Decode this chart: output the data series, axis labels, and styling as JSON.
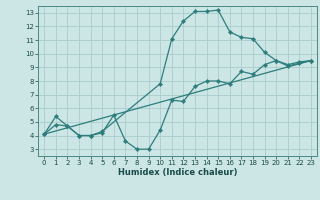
{
  "xlabel": "Humidex (Indice chaleur)",
  "bg_color": "#cce5e5",
  "grid_color": "#aacccc",
  "line_color": "#2e7d7d",
  "xlim": [
    -0.5,
    23.5
  ],
  "ylim": [
    2.5,
    13.5
  ],
  "xticks": [
    0,
    1,
    2,
    3,
    4,
    5,
    6,
    7,
    8,
    9,
    10,
    11,
    12,
    13,
    14,
    15,
    16,
    17,
    18,
    19,
    20,
    21,
    22,
    23
  ],
  "yticks": [
    3,
    4,
    5,
    6,
    7,
    8,
    9,
    10,
    11,
    12,
    13
  ],
  "line1_x": [
    0,
    1,
    2,
    3,
    4,
    5,
    10,
    11,
    12,
    13,
    14,
    15,
    16,
    17,
    18,
    19,
    20,
    21,
    22,
    23
  ],
  "line1_y": [
    4.1,
    5.4,
    4.7,
    4.0,
    4.0,
    4.3,
    7.8,
    11.1,
    12.4,
    13.1,
    13.1,
    13.2,
    11.6,
    11.2,
    11.1,
    10.1,
    9.5,
    9.2,
    9.4,
    9.5
  ],
  "line2_x": [
    0,
    23
  ],
  "line2_y": [
    4.1,
    9.5
  ],
  "line3_x": [
    0,
    1,
    2,
    3,
    4,
    5,
    6,
    7,
    8,
    9,
    10,
    11,
    12,
    13,
    14,
    15,
    16,
    17,
    18,
    19,
    20,
    21,
    22,
    23
  ],
  "line3_y": [
    4.1,
    4.8,
    4.7,
    4.0,
    4.0,
    4.2,
    5.5,
    3.6,
    3.0,
    3.0,
    4.4,
    6.6,
    6.5,
    7.6,
    8.0,
    8.0,
    7.8,
    8.7,
    8.5,
    9.2,
    9.5,
    9.1,
    9.3,
    9.5
  ]
}
